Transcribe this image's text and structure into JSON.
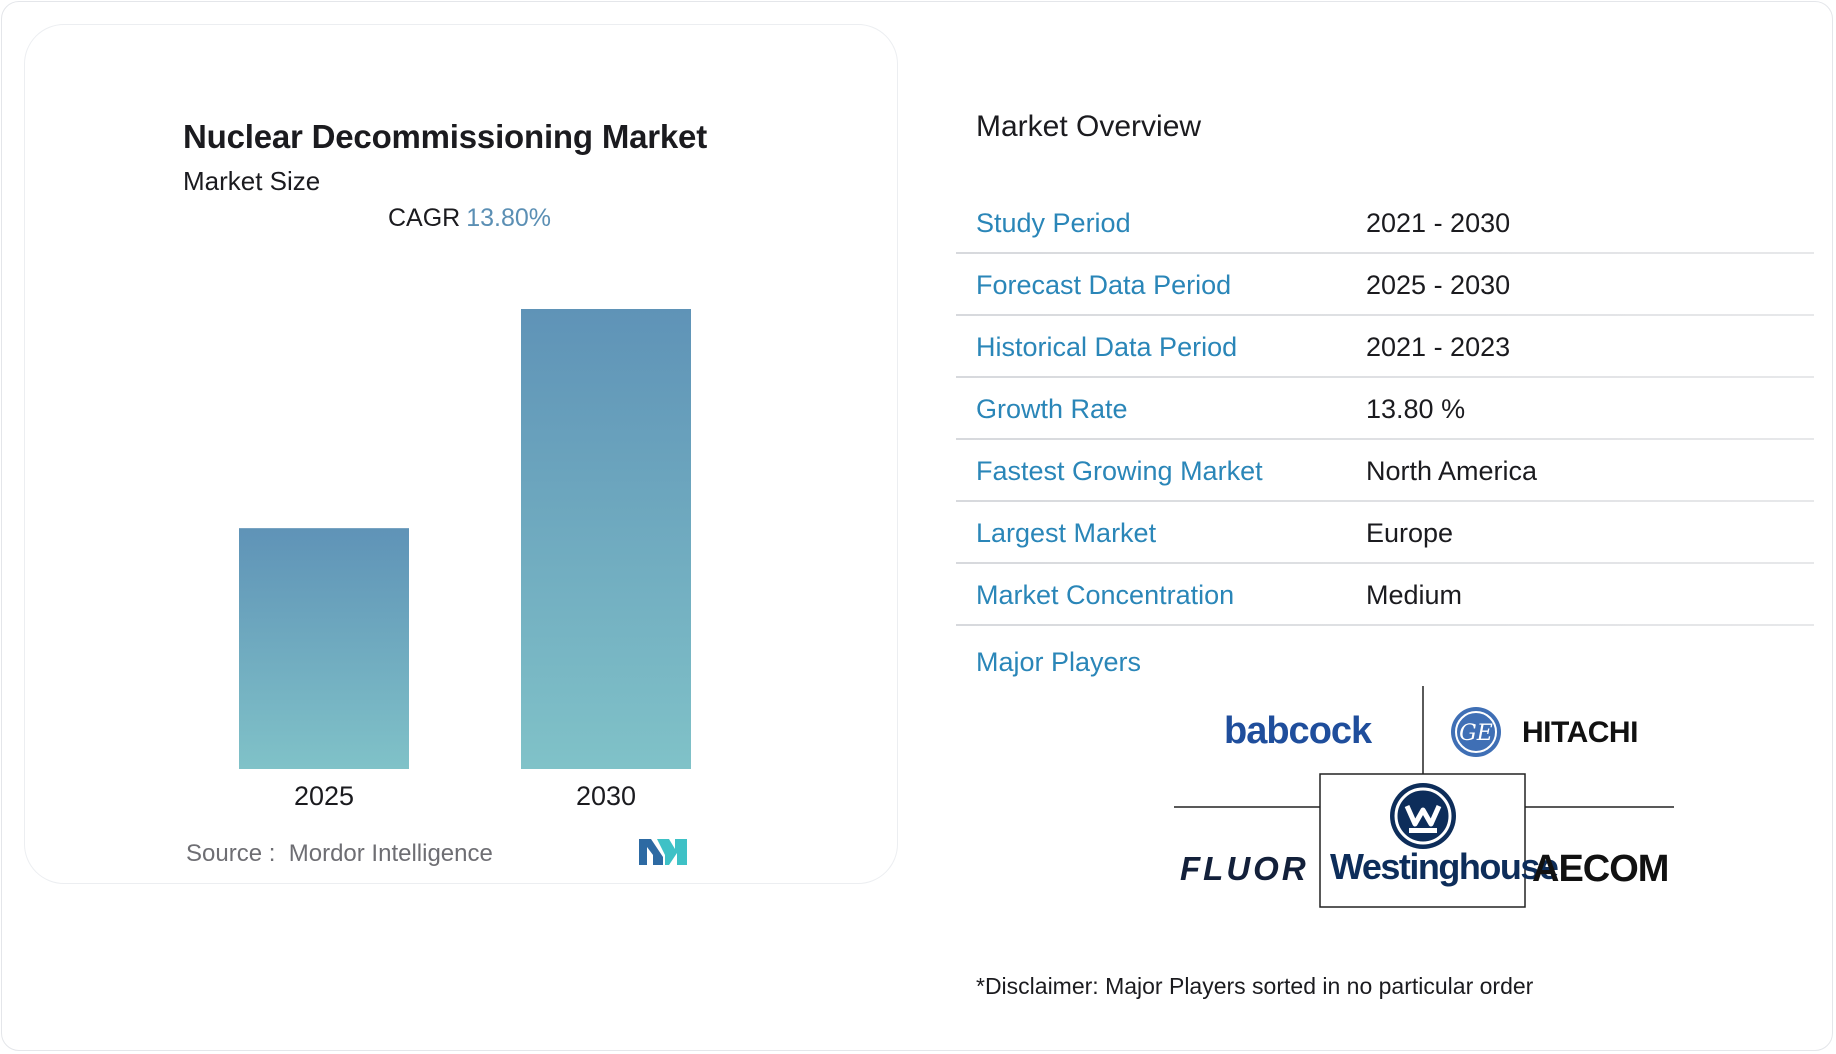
{
  "chart_data": {
    "type": "bar",
    "title": "Nuclear Decommissioning Market",
    "subtitle": "Market Size",
    "cagr_label": "CAGR",
    "cagr_value": "13.80%",
    "categories": [
      "2025",
      "2030"
    ],
    "values": [
      1.0,
      1.91
    ],
    "colors": {
      "bar_top": "#5f93b7",
      "bar_bottom": "#80c2c8"
    },
    "source_label": "Source :",
    "source_name": "Mordor Intelligence"
  },
  "overview": {
    "title": "Market Overview",
    "rows": [
      {
        "label": "Study Period",
        "value": "2021 - 2030"
      },
      {
        "label": "Forecast Data Period",
        "value": "2025 - 2030"
      },
      {
        "label": "Historical Data Period",
        "value": "2021 - 2023"
      },
      {
        "label": "Growth Rate",
        "value": "13.80 %"
      },
      {
        "label": "Fastest Growing Market",
        "value": "North America"
      },
      {
        "label": "Largest Market",
        "value": "Europe"
      },
      {
        "label": "Market Concentration",
        "value": "Medium"
      }
    ]
  },
  "players": {
    "title": "Major Players",
    "logos": [
      "babcock",
      "HITACHI",
      "FLUOR",
      "Westinghouse",
      "AECOM"
    ]
  },
  "disclaimer": "*Disclaimer: Major Players sorted in no particular order",
  "accent_color": "#2a86b8"
}
